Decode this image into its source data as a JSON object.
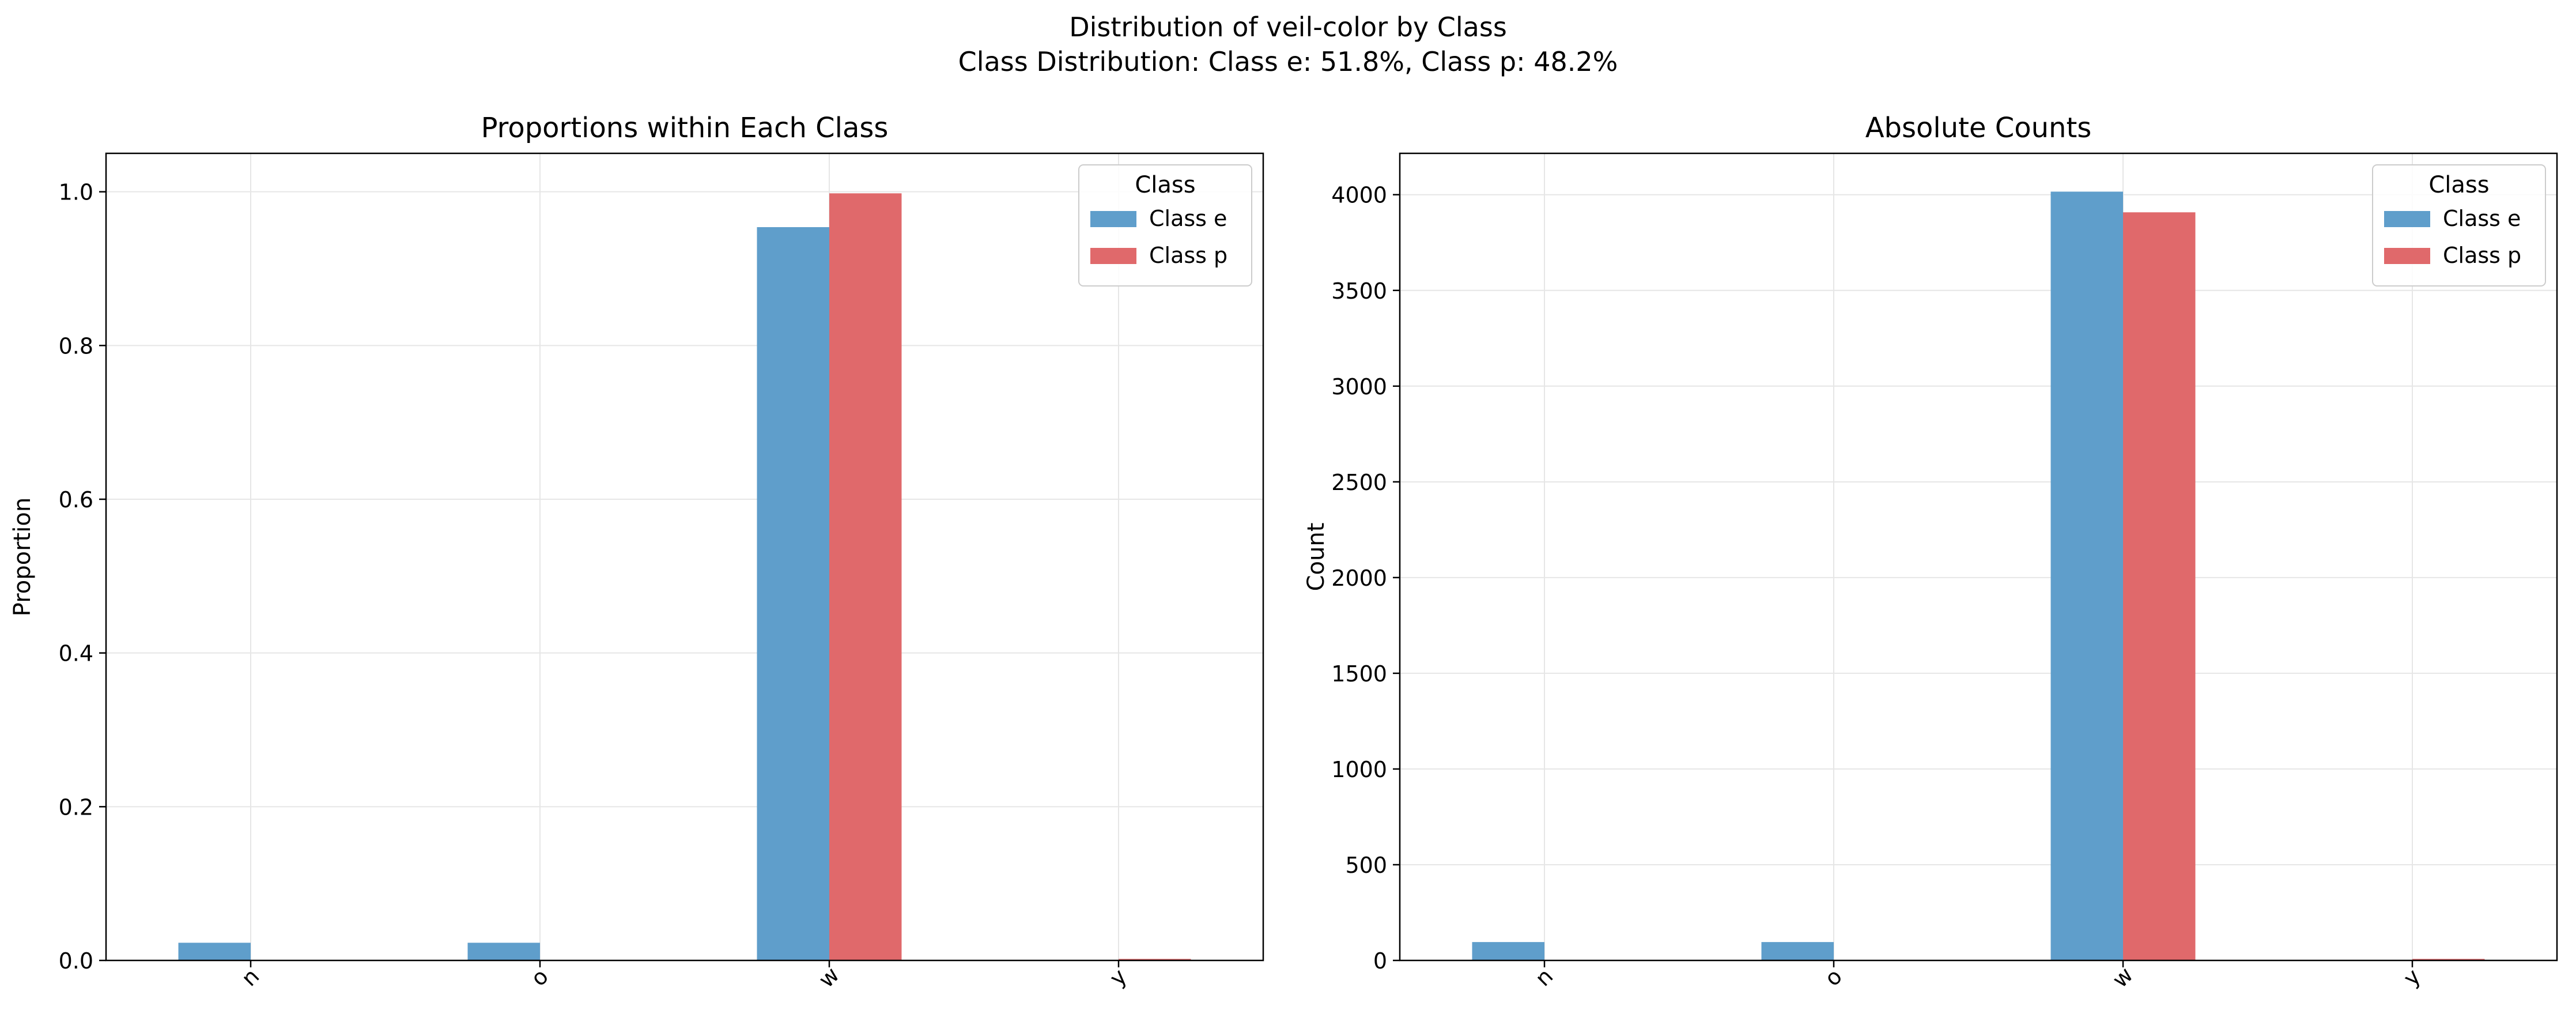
{
  "suptitle": "Distribution of veil-color by Class",
  "subtitle": "Class Distribution: Class e: 51.8%, Class p: 48.2%",
  "colors": {
    "class_e": "#5f9ecb",
    "class_p": "#e0696b",
    "grid": "#e6e6e6"
  },
  "chart_data": [
    {
      "type": "bar",
      "title": "Proportions within Each Class",
      "xlabel": "",
      "ylabel": "Proportion",
      "categories": [
        "n",
        "o",
        "w",
        "y"
      ],
      "series": [
        {
          "name": "Class e",
          "values": [
            0.023,
            0.023,
            0.954,
            0.0
          ]
        },
        {
          "name": "Class p",
          "values": [
            0.0,
            0.0,
            0.998,
            0.002
          ]
        }
      ],
      "ylim": [
        0,
        1.05
      ],
      "yticks": [
        0.0,
        0.2,
        0.4,
        0.6,
        0.8,
        1.0
      ],
      "ytick_labels": [
        "0.0",
        "0.2",
        "0.4",
        "0.6",
        "0.8",
        "1.0"
      ],
      "grid": true,
      "legend": {
        "title": "Class",
        "position": "top-right"
      }
    },
    {
      "type": "bar",
      "title": "Absolute Counts",
      "xlabel": "",
      "ylabel": "Count",
      "categories": [
        "n",
        "o",
        "w",
        "y"
      ],
      "series": [
        {
          "name": "Class e",
          "values": [
            96,
            96,
            4016,
            0
          ]
        },
        {
          "name": "Class p",
          "values": [
            0,
            0,
            3908,
            8
          ]
        }
      ],
      "ylim": [
        0,
        4216
      ],
      "yticks": [
        0,
        500,
        1000,
        1500,
        2000,
        2500,
        3000,
        3500,
        4000
      ],
      "ytick_labels": [
        "0",
        "500",
        "1000",
        "1500",
        "2000",
        "2500",
        "3000",
        "3500",
        "4000"
      ],
      "grid": true,
      "legend": {
        "title": "Class",
        "position": "top-right"
      }
    }
  ]
}
